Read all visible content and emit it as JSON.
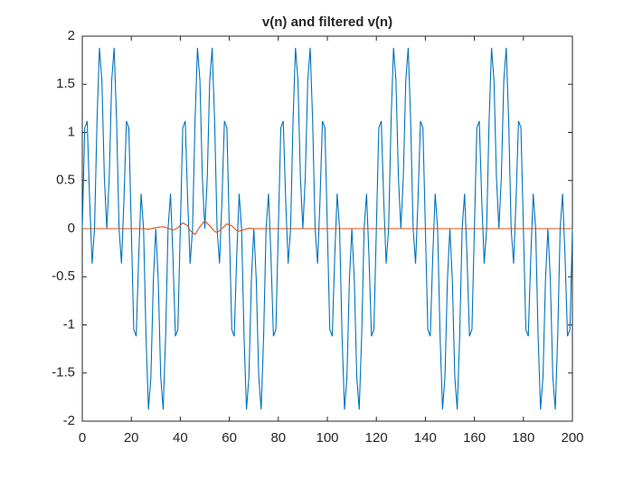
{
  "chart_data": {
    "type": "line",
    "title": "v(n) and filtered v(n)",
    "x": [
      0,
      1,
      2,
      3,
      4,
      5,
      6,
      7,
      8,
      9,
      10,
      11,
      12,
      13,
      14,
      15,
      16,
      17,
      18,
      19,
      20,
      21,
      22,
      23,
      24,
      25,
      26,
      27,
      28,
      29,
      30,
      31,
      32,
      33,
      34,
      35,
      36,
      37,
      38,
      39,
      40,
      41,
      42,
      43,
      44,
      45,
      46,
      47,
      48,
      49,
      50,
      51,
      52,
      53,
      54,
      55,
      56,
      57,
      58,
      59,
      60,
      61,
      62,
      63,
      64,
      65,
      66,
      67,
      68,
      69,
      70,
      71,
      72,
      73,
      74,
      75,
      76,
      77,
      78,
      79,
      80,
      81,
      82,
      83,
      84,
      85,
      86,
      87,
      88,
      89,
      90,
      91,
      92,
      93,
      94,
      95,
      96,
      97,
      98,
      99,
      100,
      101,
      102,
      103,
      104,
      105,
      106,
      107,
      108,
      109,
      110,
      111,
      112,
      113,
      114,
      115,
      116,
      117,
      118,
      119,
      120,
      121,
      122,
      123,
      124,
      125,
      126,
      127,
      128,
      129,
      130,
      131,
      132,
      133,
      134,
      135,
      136,
      137,
      138,
      139,
      140,
      141,
      142,
      143,
      144,
      145,
      146,
      147,
      148,
      149,
      150,
      151,
      152,
      153,
      154,
      155,
      156,
      157,
      158,
      159,
      160,
      161,
      162,
      163,
      164,
      165,
      166,
      167,
      168,
      169,
      170,
      171,
      172,
      173,
      174,
      175,
      176,
      177,
      178,
      179,
      180,
      181,
      182,
      183,
      184,
      185,
      186,
      187,
      188,
      189,
      190,
      191,
      192,
      193,
      194,
      195,
      196,
      197,
      198,
      199,
      200
    ],
    "series": [
      {
        "color": "#0072BD",
        "values": [
          0,
          1.047,
          1.118,
          0.298,
          -0.363,
          0,
          1.118,
          1.879,
          1.539,
          0.534,
          0,
          0.534,
          1.539,
          1.879,
          1.118,
          0,
          -0.363,
          0.298,
          1.118,
          1.047,
          0,
          -1.047,
          -1.118,
          -0.298,
          0.363,
          0,
          -1.118,
          -1.879,
          -1.539,
          -0.534,
          0,
          -0.534,
          -1.539,
          -1.879,
          -1.118,
          0,
          0.363,
          -0.298,
          -1.118,
          -1.047,
          0,
          1.047,
          1.118,
          0.298,
          -0.363,
          0,
          1.118,
          1.879,
          1.539,
          0.534,
          0,
          0.534,
          1.539,
          1.879,
          1.118,
          0,
          -0.363,
          0.298,
          1.118,
          1.047,
          0,
          -1.047,
          -1.118,
          -0.298,
          0.363,
          0,
          -1.118,
          -1.879,
          -1.539,
          -0.534,
          0,
          -0.534,
          -1.539,
          -1.879,
          -1.118,
          0,
          0.363,
          -0.298,
          -1.118,
          -1.047,
          0,
          1.047,
          1.118,
          0.298,
          -0.363,
          0,
          1.118,
          1.879,
          1.539,
          0.534,
          0,
          0.534,
          1.539,
          1.879,
          1.118,
          0,
          -0.363,
          0.298,
          1.118,
          1.047,
          0,
          -1.047,
          -1.118,
          -0.298,
          0.363,
          0,
          -1.118,
          -1.879,
          -1.539,
          -0.534,
          0,
          -0.534,
          -1.539,
          -1.879,
          -1.118,
          0,
          0.363,
          -0.298,
          -1.118,
          -1.047,
          0,
          1.047,
          1.118,
          0.298,
          -0.363,
          0,
          1.118,
          1.879,
          1.539,
          0.534,
          0,
          0.534,
          1.539,
          1.879,
          1.118,
          0,
          -0.363,
          0.298,
          1.118,
          1.047,
          0,
          -1.047,
          -1.118,
          -0.298,
          0.363,
          0,
          -1.118,
          -1.879,
          -1.539,
          -0.534,
          0,
          -0.534,
          -1.539,
          -1.879,
          -1.118,
          0,
          0.363,
          -0.298,
          -1.118,
          -1.047,
          0,
          1.047,
          1.118,
          0.298,
          -0.363,
          0,
          1.118,
          1.879,
          1.539,
          0.534,
          0,
          0.534,
          1.539,
          1.879,
          1.118,
          0,
          -0.363,
          0.298,
          1.118,
          1.047,
          0,
          -1.047,
          -1.118,
          -0.298,
          0.363,
          0,
          -1.118,
          -1.879,
          -1.539,
          -0.534,
          0,
          -0.534,
          -1.539,
          -1.879,
          -1.118,
          0,
          0.363,
          -0.298,
          -1.118,
          -1.047,
          0
        ]
      },
      {
        "color": "#D95319",
        "x": [
          0,
          25,
          27,
          29,
          31,
          33,
          35,
          37,
          39,
          41,
          43,
          44,
          46,
          48,
          50,
          52,
          54,
          55,
          57,
          59,
          61,
          63,
          64,
          66,
          68,
          70,
          75,
          200
        ],
        "values": [
          0,
          0,
          -0.005,
          0.005,
          0.015,
          0.02,
          0.005,
          -0.015,
          0.01,
          0.06,
          0.03,
          -0.02,
          -0.06,
          0.02,
          0.08,
          0.03,
          -0.03,
          -0.04,
          0,
          0.05,
          0.03,
          -0.02,
          -0.025,
          -0.01,
          0.005,
          0,
          0,
          0
        ]
      }
    ],
    "xlim": [
      0,
      200
    ],
    "xticks": [
      0,
      20,
      40,
      60,
      80,
      100,
      120,
      140,
      160,
      180,
      200
    ],
    "ylim": [
      -2,
      2
    ],
    "yticks": [
      -2,
      -1.5,
      -1,
      -0.5,
      0,
      0.5,
      1,
      1.5,
      2
    ]
  }
}
